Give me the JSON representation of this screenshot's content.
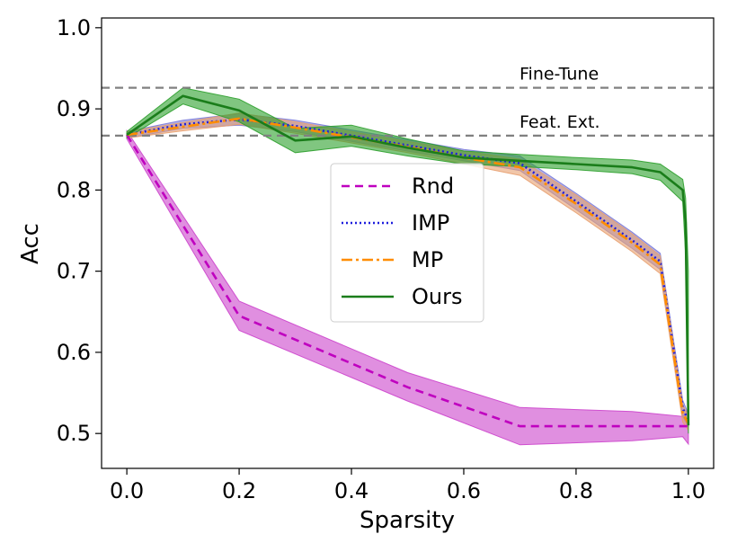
{
  "chart_data": {
    "type": "line",
    "title": "",
    "xlabel": "Sparsity",
    "ylabel": "Acc",
    "xlim": [
      -0.045,
      1.045
    ],
    "ylim": [
      0.457,
      1.012
    ],
    "xticks": [
      "0.0",
      "0.2",
      "0.4",
      "0.6",
      "0.8",
      "1.0"
    ],
    "yticks": [
      "0.5",
      "0.6",
      "0.7",
      "0.8",
      "0.9",
      "1.0"
    ],
    "grid": false,
    "legend_position": "center",
    "reference_lines": [
      {
        "label": "Fine-Tune",
        "y": 0.926,
        "color": "#808080"
      },
      {
        "label": "Feat. Ext.",
        "y": 0.867,
        "color": "#808080"
      }
    ],
    "series": [
      {
        "name": "Rnd",
        "color": "#bf00bf",
        "band_color": "#cc44cc",
        "dash": "9,6",
        "x": [
          0.0,
          0.2,
          0.5,
          0.7,
          0.9,
          0.99,
          1.0
        ],
        "values": [
          0.868,
          0.645,
          0.557,
          0.509,
          0.509,
          0.509,
          0.509
        ],
        "lower": [
          0.863,
          0.627,
          0.54,
          0.486,
          0.491,
          0.496,
          0.487
        ],
        "upper": [
          0.873,
          0.663,
          0.575,
          0.532,
          0.527,
          0.521,
          0.531
        ]
      },
      {
        "name": "IMP",
        "color": "#1f1fdd",
        "band_color": "#7b7bd9",
        "dash": "2,3",
        "x": [
          0.0,
          0.1,
          0.2,
          0.3,
          0.4,
          0.5,
          0.6,
          0.7,
          0.8,
          0.9,
          0.95,
          0.99,
          1.0
        ],
        "values": [
          0.868,
          0.881,
          0.887,
          0.879,
          0.867,
          0.855,
          0.843,
          0.833,
          0.786,
          0.738,
          0.712,
          0.531,
          0.516
        ],
        "lower": [
          0.864,
          0.876,
          0.88,
          0.872,
          0.86,
          0.848,
          0.836,
          0.824,
          0.776,
          0.728,
          0.702,
          0.521,
          0.508
        ],
        "upper": [
          0.872,
          0.886,
          0.894,
          0.886,
          0.874,
          0.862,
          0.85,
          0.842,
          0.796,
          0.748,
          0.722,
          0.541,
          0.524
        ]
      },
      {
        "name": "MP",
        "color": "#ff8c00",
        "band_color": "#e8a070",
        "dash": "12,4,3,4",
        "x": [
          0.0,
          0.1,
          0.2,
          0.3,
          0.4,
          0.5,
          0.6,
          0.7,
          0.8,
          0.9,
          0.95,
          0.99,
          1.0
        ],
        "values": [
          0.868,
          0.878,
          0.888,
          0.877,
          0.865,
          0.853,
          0.84,
          0.828,
          0.783,
          0.735,
          0.708,
          0.525,
          0.512
        ],
        "lower": [
          0.864,
          0.873,
          0.881,
          0.87,
          0.858,
          0.846,
          0.832,
          0.818,
          0.772,
          0.724,
          0.697,
          0.514,
          0.504
        ],
        "upper": [
          0.872,
          0.883,
          0.895,
          0.884,
          0.872,
          0.86,
          0.848,
          0.838,
          0.794,
          0.746,
          0.719,
          0.536,
          0.52
        ]
      },
      {
        "name": "Ours",
        "color": "#1a7d1a",
        "band_color": "#2ca02c",
        "dash": "",
        "x": [
          0.0,
          0.1,
          0.2,
          0.3,
          0.4,
          0.5,
          0.6,
          0.7,
          0.8,
          0.9,
          0.95,
          0.99,
          0.995,
          1.0
        ],
        "values": [
          0.868,
          0.916,
          0.898,
          0.861,
          0.866,
          0.852,
          0.84,
          0.836,
          0.832,
          0.828,
          0.822,
          0.8,
          0.76,
          0.51
        ],
        "lower": [
          0.864,
          0.906,
          0.884,
          0.846,
          0.854,
          0.842,
          0.832,
          0.829,
          0.825,
          0.82,
          0.812,
          0.786,
          0.72,
          0.5
        ],
        "upper": [
          0.872,
          0.926,
          0.912,
          0.876,
          0.88,
          0.863,
          0.848,
          0.844,
          0.84,
          0.837,
          0.832,
          0.813,
          0.79,
          0.7
        ]
      }
    ]
  }
}
